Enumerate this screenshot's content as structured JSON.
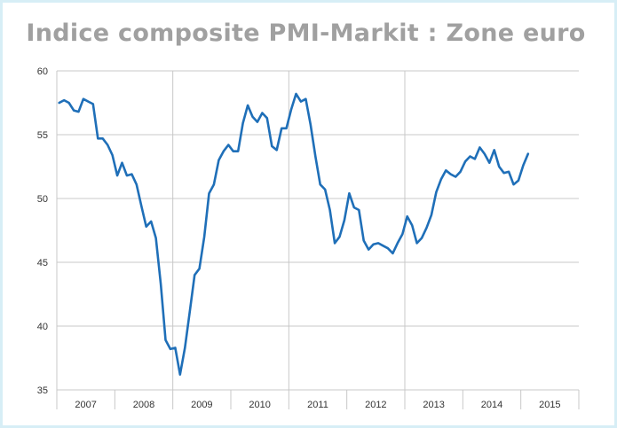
{
  "chart_data": {
    "type": "line",
    "title": "Indice composite PMI-Markit : Zone euro",
    "xlabel": "",
    "ylabel": "",
    "ylim": [
      35,
      60
    ],
    "yticks": [
      35,
      40,
      45,
      50,
      55,
      60
    ],
    "years": [
      "2007",
      "2008",
      "2009",
      "2010",
      "2011",
      "2012",
      "2013",
      "2014",
      "2015"
    ],
    "grid": true,
    "line_color": "#1f6fb8",
    "series": [
      {
        "x_start": "2007-01",
        "frequency": "monthly",
        "values": [
          57.5,
          57.7,
          57.5,
          56.9,
          56.8,
          57.8,
          57.6,
          57.4,
          54.7,
          54.7,
          54.2,
          53.4,
          51.8,
          52.8,
          51.8,
          51.9,
          51.1,
          49.4,
          47.8,
          48.2,
          46.9,
          43.3,
          38.9,
          38.2,
          38.3,
          36.2,
          38.3,
          41.1,
          44.0,
          44.5,
          47.0,
          50.4,
          51.1,
          53.0,
          53.7,
          54.2,
          53.7,
          53.7,
          55.9,
          57.3,
          56.4,
          56.0,
          56.7,
          56.3,
          54.1,
          53.8,
          55.5,
          55.5,
          57.0,
          58.2,
          57.6,
          57.8,
          55.8,
          53.3,
          51.1,
          50.7,
          49.1,
          46.5,
          47.0,
          48.3,
          50.4,
          49.3,
          49.1,
          46.7,
          46.0,
          46.4,
          46.5,
          46.3,
          46.1,
          45.7,
          46.5,
          47.2,
          48.6,
          47.9,
          46.5,
          46.9,
          47.7,
          48.7,
          50.5,
          51.5,
          52.2,
          51.9,
          51.7,
          52.1,
          52.9,
          53.3,
          53.1,
          54.0,
          53.5,
          52.8,
          53.8,
          52.5,
          52.0,
          52.1,
          51.1,
          51.4,
          52.6,
          53.5
        ]
      }
    ]
  }
}
